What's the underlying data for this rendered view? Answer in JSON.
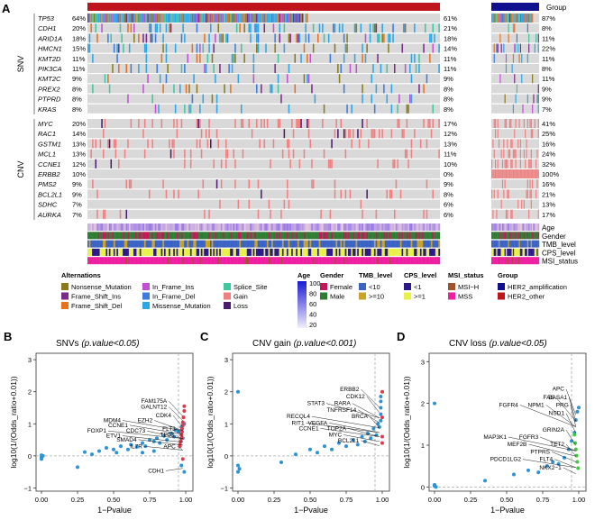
{
  "panel_labels": {
    "a": "A",
    "b": "B",
    "c": "C",
    "d": "D"
  },
  "oncoplot": {
    "top_legend_label": "Group",
    "snv_label": "SNV",
    "cnv_label": "CNV",
    "snv_genes": [
      {
        "name": "TP53",
        "pct": "64%",
        "her2_other": "61%",
        "her2_amp": "87%"
      },
      {
        "name": "CDH1",
        "pct": "20%",
        "her2_other": "21%",
        "her2_amp": "8%"
      },
      {
        "name": "ARID1A",
        "pct": "18%",
        "her2_other": "18%",
        "her2_amp": "11%"
      },
      {
        "name": "HMCN1",
        "pct": "15%",
        "her2_other": "14%",
        "her2_amp": "22%"
      },
      {
        "name": "KMT2D",
        "pct": "11%",
        "her2_other": "11%",
        "her2_amp": "11%"
      },
      {
        "name": "PIK3CA",
        "pct": "11%",
        "her2_other": "11%",
        "her2_amp": "8%"
      },
      {
        "name": "KMT2C",
        "pct": "9%",
        "her2_other": "9%",
        "her2_amp": "11%"
      },
      {
        "name": "PREX2",
        "pct": "8%",
        "her2_other": "8%",
        "her2_amp": "9%"
      },
      {
        "name": "PTPRD",
        "pct": "8%",
        "her2_other": "8%",
        "her2_amp": "9%"
      },
      {
        "name": "KRAS",
        "pct": "8%",
        "her2_other": "8%",
        "her2_amp": "7%"
      }
    ],
    "cnv_genes": [
      {
        "name": "MYC",
        "pct": "20%",
        "her2_other": "17%",
        "her2_amp": "41%"
      },
      {
        "name": "RAC1",
        "pct": "14%",
        "her2_other": "12%",
        "her2_amp": "25%"
      },
      {
        "name": "GSTM1",
        "pct": "13%",
        "her2_other": "13%",
        "her2_amp": "16%"
      },
      {
        "name": "MCL1",
        "pct": "13%",
        "her2_other": "11%",
        "her2_amp": "24%"
      },
      {
        "name": "CCNE1",
        "pct": "12%",
        "her2_other": "10%",
        "her2_amp": "32%"
      },
      {
        "name": "ERBB2",
        "pct": "10%",
        "her2_other": "0%",
        "her2_amp": "100%"
      },
      {
        "name": "PMS2",
        "pct": "9%",
        "her2_other": "9%",
        "her2_amp": "16%"
      },
      {
        "name": "BCL2L1",
        "pct": "9%",
        "her2_other": "8%",
        "her2_amp": "21%"
      },
      {
        "name": "SDHC",
        "pct": "7%",
        "her2_other": "6%",
        "her2_amp": "13%"
      },
      {
        "name": "AURKA",
        "pct": "7%",
        "her2_other": "6%",
        "her2_amp": "17%"
      }
    ],
    "track_labels": [
      "Age",
      "Gender",
      "TMB_level",
      "CPS_level",
      "MSI_status"
    ],
    "colors": {
      "nonsense": "#8a7a1a",
      "fs_ins": "#7b2a8a",
      "fs_del": "#e8711f",
      "if_ins": "#c44fd4",
      "if_del": "#3d7be0",
      "missense": "#2ba7e5",
      "splice": "#3dc8a0",
      "gain": "#f08080",
      "loss": "#4a1c6e",
      "empty": "#d9d9d9",
      "group_amp": "#11118f",
      "group_other": "#c0141d",
      "female": "#c2185b",
      "male": "#2e7d32",
      "tmb_low": "#3b63c4",
      "tmb_high": "#c9a227",
      "cps_low": "#2b1a8a",
      "cps_high": "#e8f04a",
      "msi_h": "#a0522d",
      "mss": "#ee1fa0"
    }
  },
  "legend": {
    "alterations": {
      "title": "Alternations",
      "items": [
        "Nonsense_Mutation",
        "Frame_Shift_Ins",
        "Frame_Shift_Del",
        "In_Frame_Ins",
        "In_Frame_Del",
        "Missense_Mutation",
        "Splice_Site",
        "Gain",
        "Loss"
      ]
    },
    "age": {
      "title": "Age",
      "ticks": [
        "100",
        "80",
        "60",
        "40",
        "20"
      ]
    },
    "gender": {
      "title": "Gender",
      "items": [
        "Female",
        "Male"
      ]
    },
    "tmb": {
      "title": "TMB_level",
      "items": [
        "<10",
        ">=10"
      ]
    },
    "cps": {
      "title": "CPS_level",
      "items": [
        "<1",
        ">=1"
      ]
    },
    "msi": {
      "title": "MSI_status",
      "items": [
        "MSI−H",
        "MSS"
      ]
    },
    "group": {
      "title": "Group",
      "items": [
        "HER2_amplification",
        "HER2_other"
      ]
    }
  },
  "chart_data": [
    {
      "type": "scatter",
      "title": "SNVs",
      "title_suffix": "(p.value<0.05)",
      "xlabel": "1−Pvalue",
      "ylabel": "log10(1/(Odds_ratio+0.01))",
      "xlim": [
        0,
        1
      ],
      "ylim": [
        -1.1,
        3.2
      ],
      "xticks": [
        "0.00",
        "0.25",
        "0.50",
        "0.75",
        "1.00"
      ],
      "yticks": [
        "−1",
        "0",
        "1",
        "2",
        "3"
      ],
      "points": [
        {
          "x": 0.0,
          "y": 0.02
        },
        {
          "x": 0.0,
          "y": -0.05
        },
        {
          "x": 0.0,
          "y": -0.1
        },
        {
          "x": 0.01,
          "y": 0.0
        },
        {
          "x": 0.25,
          "y": -0.35
        },
        {
          "x": 0.3,
          "y": 0.12
        },
        {
          "x": 0.35,
          "y": 0.05
        },
        {
          "x": 0.4,
          "y": 0.15
        },
        {
          "x": 0.45,
          "y": 0.25
        },
        {
          "x": 0.5,
          "y": 0.2
        },
        {
          "x": 0.52,
          "y": 0.1
        },
        {
          "x": 0.55,
          "y": 0.3
        },
        {
          "x": 0.6,
          "y": 0.2
        },
        {
          "x": 0.62,
          "y": 0.35
        },
        {
          "x": 0.66,
          "y": 0.28
        },
        {
          "x": 0.7,
          "y": 0.4
        },
        {
          "x": 0.72,
          "y": 0.3
        },
        {
          "x": 0.75,
          "y": 0.5
        },
        {
          "x": 0.78,
          "y": 0.45
        },
        {
          "x": 0.8,
          "y": 0.55
        },
        {
          "x": 0.82,
          "y": 0.4
        },
        {
          "x": 0.85,
          "y": 0.62
        },
        {
          "x": 0.87,
          "y": 0.5
        },
        {
          "x": 0.9,
          "y": 0.7
        },
        {
          "x": 0.92,
          "y": 0.6
        },
        {
          "x": 0.93,
          "y": 0.8
        },
        {
          "x": 0.95,
          "y": 0.75
        },
        {
          "x": 0.97,
          "y": 0.9
        },
        {
          "x": 0.98,
          "y": 0.55
        },
        {
          "x": 0.99,
          "y": 1.0
        },
        {
          "x": 0.78,
          "y": 0.15
        },
        {
          "x": 0.7,
          "y": 0.1
        },
        {
          "x": 0.97,
          "y": -0.3
        },
        {
          "x": 0.99,
          "y": -0.5
        }
      ],
      "sig_points": [
        {
          "x": 0.99,
          "y": 1.55
        },
        {
          "x": 0.99,
          "y": 1.4
        },
        {
          "x": 0.985,
          "y": 1.2
        },
        {
          "x": 0.98,
          "y": 1.05
        },
        {
          "x": 0.98,
          "y": 0.95
        },
        {
          "x": 0.975,
          "y": 0.85
        },
        {
          "x": 0.975,
          "y": 0.75
        },
        {
          "x": 0.97,
          "y": 0.65
        },
        {
          "x": 0.97,
          "y": 0.55
        },
        {
          "x": 0.965,
          "y": 0.45
        },
        {
          "x": 0.96,
          "y": 0.35
        },
        {
          "x": 0.96,
          "y": 0.3
        },
        {
          "x": 0.98,
          "y": -0.1
        }
      ],
      "labels": [
        {
          "text": "FAM175A",
          "x": 0.87,
          "y": 1.65
        },
        {
          "text": "GALNT12",
          "x": 0.87,
          "y": 1.47
        },
        {
          "text": "CDK4",
          "x": 0.9,
          "y": 1.2
        },
        {
          "text": "MDM4",
          "x": 0.55,
          "y": 1.05
        },
        {
          "text": "EZH2",
          "x": 0.77,
          "y": 1.05
        },
        {
          "text": "CCNE1",
          "x": 0.6,
          "y": 0.9
        },
        {
          "text": "FLT3",
          "x": 0.93,
          "y": 0.78
        },
        {
          "text": "FOXP1",
          "x": 0.45,
          "y": 0.72
        },
        {
          "text": "CDC73",
          "x": 0.72,
          "y": 0.72
        },
        {
          "text": "TP53",
          "x": 0.92,
          "y": 0.6
        },
        {
          "text": "ETV1",
          "x": 0.55,
          "y": 0.57
        },
        {
          "text": "SMAD4",
          "x": 0.66,
          "y": 0.45
        },
        {
          "text": "IL7R",
          "x": 0.7,
          "y": 0.24
        },
        {
          "text": "APC",
          "x": 0.93,
          "y": 0.24
        },
        {
          "text": "CDH1",
          "x": 0.85,
          "y": -0.52
        }
      ]
    },
    {
      "type": "scatter",
      "title": "CNV gain",
      "title_suffix": "(p.value<0.001)",
      "xlabel": "1−Pvalue",
      "ylabel": "log10(1/(Odds_ratio+0.01))",
      "xlim": [
        0,
        1
      ],
      "ylim": [
        -1.1,
        3.2
      ],
      "xticks": [
        "0.00",
        "0.25",
        "0.50",
        "0.75",
        "1.00"
      ],
      "yticks": [
        "−1",
        "0",
        "1",
        "2",
        "3"
      ],
      "points": [
        {
          "x": 0.0,
          "y": 2.0
        },
        {
          "x": 0.0,
          "y": -0.3
        },
        {
          "x": 0.0,
          "y": -0.5
        },
        {
          "x": 0.01,
          "y": -0.4
        },
        {
          "x": 0.3,
          "y": -0.2
        },
        {
          "x": 0.4,
          "y": 0.05
        },
        {
          "x": 0.5,
          "y": 0.2
        },
        {
          "x": 0.55,
          "y": 0.1
        },
        {
          "x": 0.6,
          "y": 0.3
        },
        {
          "x": 0.65,
          "y": 0.2
        },
        {
          "x": 0.7,
          "y": 0.4
        },
        {
          "x": 0.75,
          "y": 0.3
        },
        {
          "x": 0.8,
          "y": 0.5
        },
        {
          "x": 0.83,
          "y": 0.35
        },
        {
          "x": 0.86,
          "y": 0.6
        },
        {
          "x": 0.88,
          "y": 0.45
        },
        {
          "x": 0.9,
          "y": 0.7
        },
        {
          "x": 0.92,
          "y": 0.55
        },
        {
          "x": 0.94,
          "y": 0.85
        },
        {
          "x": 0.96,
          "y": 0.65
        },
        {
          "x": 0.97,
          "y": 1.0
        },
        {
          "x": 0.98,
          "y": 0.9
        },
        {
          "x": 0.99,
          "y": 1.1
        },
        {
          "x": 0.99,
          "y": 1.3
        },
        {
          "x": 0.99,
          "y": 1.5
        },
        {
          "x": 0.99,
          "y": 1.7
        },
        {
          "x": 0.99,
          "y": 1.85
        }
      ],
      "sig_points": [
        {
          "x": 1.0,
          "y": 2.0
        },
        {
          "x": 1.0,
          "y": 1.2
        },
        {
          "x": 1.0,
          "y": 0.6
        },
        {
          "x": 1.0,
          "y": 0.4
        }
      ],
      "labels": [
        {
          "text": "ERBB2",
          "x": 0.84,
          "y": 2.02
        },
        {
          "text": "CDK12",
          "x": 0.88,
          "y": 1.8
        },
        {
          "text": "STAT3",
          "x": 0.6,
          "y": 1.58
        },
        {
          "text": "RARA",
          "x": 0.78,
          "y": 1.58
        },
        {
          "text": "TNFRSF14",
          "x": 0.82,
          "y": 1.38
        },
        {
          "text": "RECQL4",
          "x": 0.5,
          "y": 1.17
        },
        {
          "text": "BRCA",
          "x": 0.9,
          "y": 1.17
        },
        {
          "text": "RIT1",
          "x": 0.46,
          "y": 0.97
        },
        {
          "text": "VEGFA",
          "x": 0.62,
          "y": 0.97
        },
        {
          "text": "CCNE1",
          "x": 0.56,
          "y": 0.8
        },
        {
          "text": "TOP2A",
          "x": 0.75,
          "y": 0.8
        },
        {
          "text": "MYC",
          "x": 0.72,
          "y": 0.6
        },
        {
          "text": "BCL2L1",
          "x": 0.84,
          "y": 0.42
        }
      ]
    },
    {
      "type": "scatter",
      "title": "CNV loss",
      "title_suffix": "(p.value<0.05)",
      "xlabel": "1−Pvalue",
      "ylabel": "log10(1/(Odds_ratio+0.01))",
      "xlim": [
        0,
        1
      ],
      "ylim": [
        -0.1,
        3.2
      ],
      "xticks": [
        "0.00",
        "0.25",
        "0.50",
        "0.75",
        "1.00"
      ],
      "yticks": [
        "0",
        "1",
        "2",
        "3"
      ],
      "points": [
        {
          "x": 0.0,
          "y": 2.0
        },
        {
          "x": 0.0,
          "y": 0.05
        },
        {
          "x": 0.0,
          "y": 0.02
        },
        {
          "x": 0.01,
          "y": 0.0
        },
        {
          "x": 0.35,
          "y": 0.15
        },
        {
          "x": 0.55,
          "y": 0.3
        },
        {
          "x": 0.65,
          "y": 0.4
        },
        {
          "x": 0.72,
          "y": 0.35
        },
        {
          "x": 0.78,
          "y": 0.5
        },
        {
          "x": 0.82,
          "y": 0.6
        },
        {
          "x": 0.86,
          "y": 0.55
        },
        {
          "x": 0.9,
          "y": 0.7
        },
        {
          "x": 0.93,
          "y": 0.9
        },
        {
          "x": 0.95,
          "y": 1.1
        },
        {
          "x": 0.97,
          "y": 1.3
        },
        {
          "x": 0.98,
          "y": 1.6
        },
        {
          "x": 0.99,
          "y": 1.8
        },
        {
          "x": 1.0,
          "y": 1.9
        }
      ],
      "sig_points": [
        {
          "x": 0.97,
          "y": 1.25
        },
        {
          "x": 0.975,
          "y": 1.05
        },
        {
          "x": 0.98,
          "y": 0.9
        },
        {
          "x": 0.985,
          "y": 0.75
        },
        {
          "x": 0.99,
          "y": 0.6
        },
        {
          "x": 0.995,
          "y": 0.45
        }
      ],
      "labels": [
        {
          "text": "APC",
          "x": 0.9,
          "y": 2.3
        },
        {
          "text": "FAS",
          "x": 0.83,
          "y": 2.1
        },
        {
          "text": "BASA1",
          "x": 0.92,
          "y": 2.1
        },
        {
          "text": "FGFR4",
          "x": 0.58,
          "y": 1.92
        },
        {
          "text": "NPM1",
          "x": 0.76,
          "y": 1.92
        },
        {
          "text": "PRG",
          "x": 0.93,
          "y": 1.92
        },
        {
          "text": "NSD1",
          "x": 0.9,
          "y": 1.72
        },
        {
          "text": "GRIN2A",
          "x": 0.9,
          "y": 1.32
        },
        {
          "text": "MAP3K1",
          "x": 0.5,
          "y": 1.15
        },
        {
          "text": "FGFR3",
          "x": 0.72,
          "y": 1.15
        },
        {
          "text": "MEF2B",
          "x": 0.64,
          "y": 0.98
        },
        {
          "text": "TET2",
          "x": 0.9,
          "y": 0.98
        },
        {
          "text": "PTPRS",
          "x": 0.8,
          "y": 0.8
        },
        {
          "text": "PDCD1LG2",
          "x": 0.6,
          "y": 0.62
        },
        {
          "text": "FLT4",
          "x": 0.82,
          "y": 0.62
        },
        {
          "text": "NKX2−1",
          "x": 0.88,
          "y": 0.42
        }
      ]
    }
  ]
}
